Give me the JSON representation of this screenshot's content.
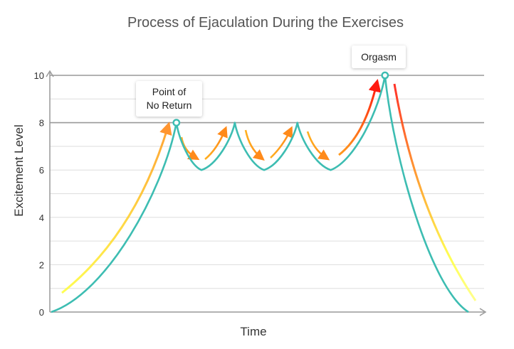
{
  "chart_data": {
    "type": "line",
    "title": "Process of Ejaculation During the Exercises",
    "xlabel": "Time",
    "ylabel": "Excitement Level",
    "ylim": [
      0,
      10
    ],
    "xlim": [
      0,
      10
    ],
    "yticks": [
      "0",
      "2",
      "4",
      "6",
      "8",
      "10"
    ],
    "grid": true,
    "highlighted_levels": [
      8,
      10
    ],
    "series": [
      {
        "values": [
          {
            "x": 0,
            "y": 0
          },
          {
            "x": 3,
            "y": 8
          },
          {
            "x": 3.6,
            "y": 6
          },
          {
            "x": 4.4,
            "y": 8
          },
          {
            "x": 5.1,
            "y": 6
          },
          {
            "x": 5.9,
            "y": 8
          },
          {
            "x": 6.7,
            "y": 6
          },
          {
            "x": 8.0,
            "y": 10
          },
          {
            "x": 10,
            "y": 0
          }
        ]
      }
    ],
    "annotations": [
      {
        "lines": [
          "Point of",
          "No Return"
        ],
        "x": 3,
        "y": 8
      },
      {
        "lines": [
          "Orgasm"
        ],
        "x": 8.0,
        "y": 10
      }
    ]
  },
  "colors": {
    "line": "#3dbdb2",
    "arrow_low": "#ffff40",
    "arrow_mid": "#ff9a1e",
    "arrow_high": "#ff1a10",
    "gridline": "#dddddd",
    "gridline_strong": "#999999",
    "axis": "#999999"
  }
}
